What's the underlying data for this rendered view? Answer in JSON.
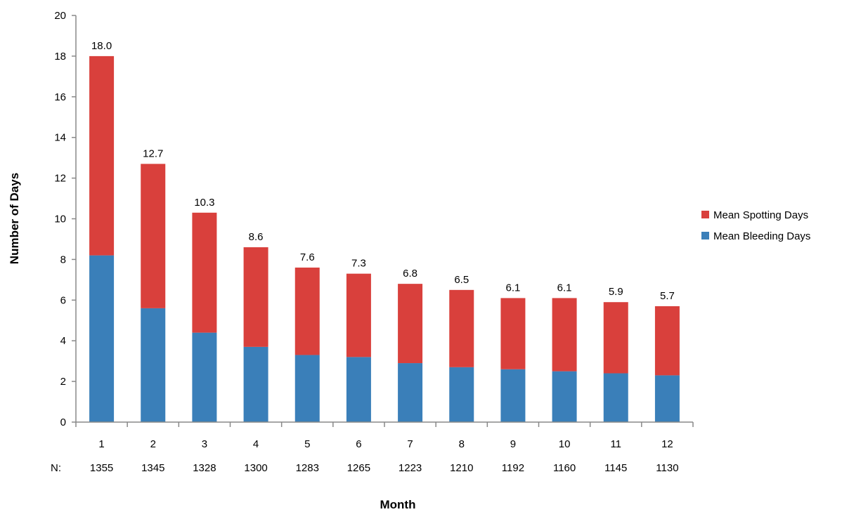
{
  "chart_data": {
    "type": "bar",
    "stacked": true,
    "categories": [
      "1",
      "2",
      "3",
      "4",
      "5",
      "6",
      "7",
      "8",
      "9",
      "10",
      "11",
      "12"
    ],
    "series": [
      {
        "name": "Mean Bleeding Days",
        "color": "#3a7fb9",
        "values": [
          8.2,
          5.6,
          4.4,
          3.7,
          3.3,
          3.2,
          2.9,
          2.7,
          2.6,
          2.5,
          2.4,
          2.3
        ]
      },
      {
        "name": "Mean Spotting Days",
        "color": "#d9403c",
        "values": [
          9.8,
          7.1,
          5.9,
          4.9,
          4.3,
          4.1,
          3.9,
          3.8,
          3.5,
          3.6,
          3.5,
          3.4
        ]
      }
    ],
    "totals_labels": [
      "18.0",
      "12.7",
      "10.3",
      "8.6",
      "7.6",
      "7.3",
      "6.8",
      "6.5",
      "6.1",
      "6.1",
      "5.9",
      "5.7"
    ],
    "n_label": "N:",
    "n_values": [
      "1355",
      "1345",
      "1328",
      "1300",
      "1283",
      "1265",
      "1223",
      "1210",
      "1192",
      "1160",
      "1145",
      "1130"
    ],
    "ylim": [
      0,
      20
    ],
    "yticks": [
      0,
      2,
      4,
      6,
      8,
      10,
      12,
      14,
      16,
      18,
      20
    ],
    "xlabel": "Month",
    "ylabel": "Number of Days",
    "grid": false,
    "legend": {
      "placement": "right",
      "entries": [
        "Mean Spotting Days",
        "Mean Bleeding Days"
      ]
    }
  }
}
